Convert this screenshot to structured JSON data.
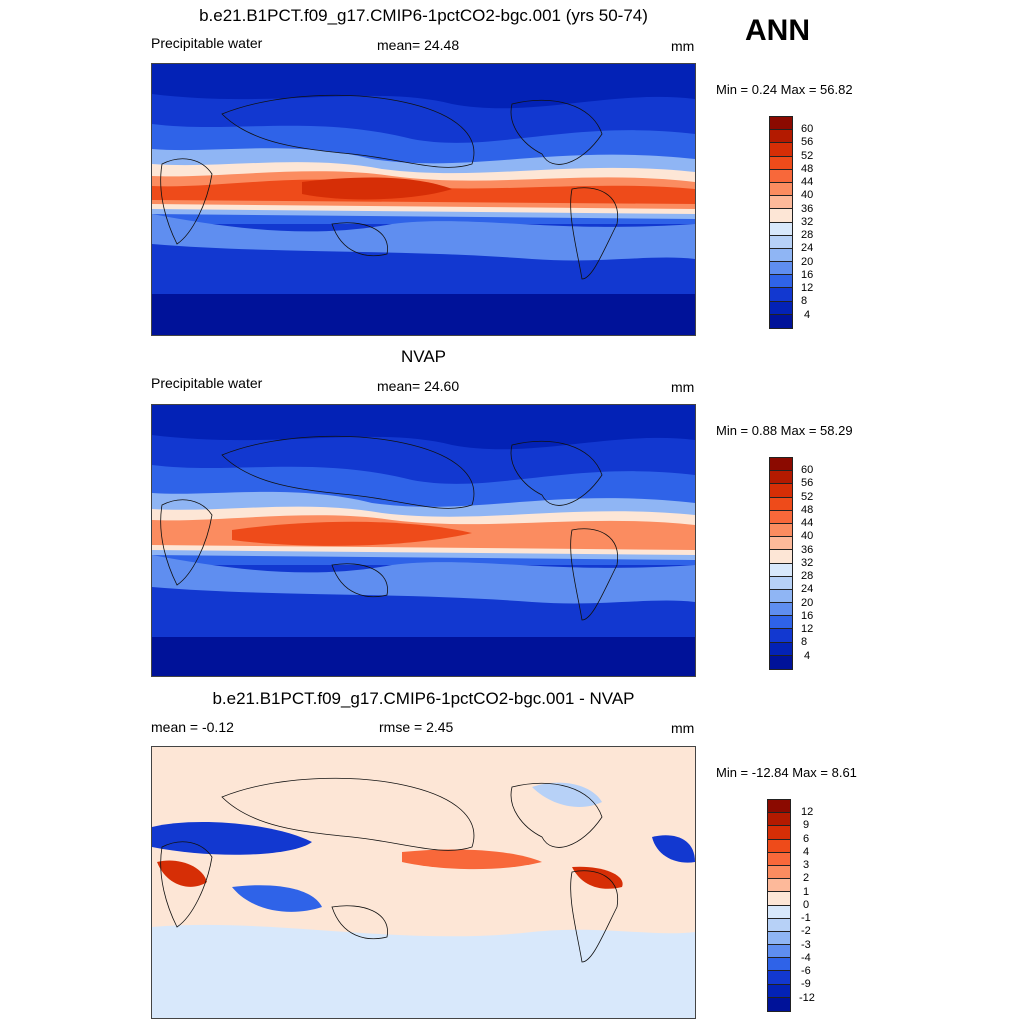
{
  "ann_label": "ANN",
  "panels": [
    {
      "title": "b.e21.B1PCT.f09_g17.CMIP6-1pctCO2-bgc.001 (yrs 50-74)",
      "left_label": "Precipitable water",
      "center_label": "mean=  24.48",
      "right_label": "mm",
      "minmax": "Min =   0.24 Max =  56.82",
      "levels": [
        "60",
        "56",
        "52",
        "48",
        "44",
        "40",
        "36",
        "32",
        "28",
        "24",
        "20",
        "16",
        "12",
        "8",
        "4"
      ],
      "colors": [
        "#8b0a00",
        "#b31a00",
        "#d62e06",
        "#ee4b1a",
        "#f8683a",
        "#fb8c60",
        "#fdb99a",
        "#fde6d6",
        "#d8e8fb",
        "#b7d1f7",
        "#8fb5f4",
        "#5f8ef0",
        "#2f63e8",
        "#1238d0",
        "#0322b6",
        "#001299"
      ]
    },
    {
      "title": "NVAP",
      "left_label": "Precipitable water",
      "center_label": "mean=  24.60",
      "right_label": "mm",
      "minmax": "Min =   0.88 Max =  58.29",
      "levels": [
        "60",
        "56",
        "52",
        "48",
        "44",
        "40",
        "36",
        "32",
        "28",
        "24",
        "20",
        "16",
        "12",
        "8",
        "4"
      ],
      "colors": [
        "#8b0a00",
        "#b31a00",
        "#d62e06",
        "#ee4b1a",
        "#f8683a",
        "#fb8c60",
        "#fdb99a",
        "#fde6d6",
        "#d8e8fb",
        "#b7d1f7",
        "#8fb5f4",
        "#5f8ef0",
        "#2f63e8",
        "#1238d0",
        "#0322b6",
        "#001299"
      ]
    },
    {
      "title": "b.e21.B1PCT.f09_g17.CMIP6-1pctCO2-bgc.001 - NVAP",
      "left_label": "mean =  -0.12",
      "center_label": "rmse =   2.45",
      "right_label": "mm",
      "minmax": "Min = -12.84 Max =   8.61",
      "levels": [
        "12",
        "9",
        "6",
        "4",
        "3",
        "2",
        "1",
        "0",
        "-1",
        "-2",
        "-3",
        "-4",
        "-6",
        "-9",
        "-12"
      ],
      "colors": [
        "#8b0a00",
        "#b31a00",
        "#d62e06",
        "#ee4b1a",
        "#f8683a",
        "#fb8c60",
        "#fdb99a",
        "#fde6d6",
        "#d8e8fb",
        "#b7d1f7",
        "#8fb5f4",
        "#5f8ef0",
        "#2f63e8",
        "#1238d0",
        "#0322b6",
        "#001299"
      ]
    }
  ]
}
